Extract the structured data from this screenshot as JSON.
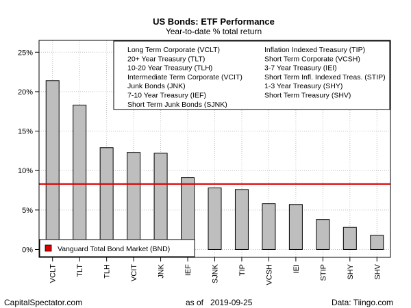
{
  "chart_data": {
    "type": "bar",
    "title": "US Bonds: ETF Performance",
    "subtitle": "Year-to-date % total return",
    "categories": [
      "VCLT",
      "TLT",
      "TLH",
      "VCIT",
      "JNK",
      "IEF",
      "SJNK",
      "TIP",
      "VCSH",
      "IEI",
      "STIP",
      "SHY",
      "SHV"
    ],
    "values": [
      21.4,
      18.3,
      12.9,
      12.3,
      12.2,
      9.1,
      7.8,
      7.6,
      5.8,
      5.7,
      3.8,
      2.8,
      1.8
    ],
    "ylim": [
      -1,
      26.5
    ],
    "yticks": [
      0,
      5,
      10,
      15,
      20,
      25
    ],
    "yticklabels": [
      "0%",
      "5%",
      "10%",
      "15%",
      "20%",
      "25%"
    ],
    "bar_color": "#bebebe",
    "grid": true,
    "reference_line": {
      "label": "Vanguard Total Bond Market (BND)",
      "value": 8.3,
      "color": "#dd0000"
    },
    "legend_entries": [
      "Long Term Corporate (VCLT)",
      "20+ Year Treasury (TLT)",
      "10-20 Year Treasury (TLH)",
      "Intermediate Term Corporate (VCIT)",
      "Junk Bonds (JNK)",
      "7-10 Year Treasury (IEF)",
      "Short Term Junk Bonds (SJNK)",
      "Inflation Indexed Treasury (TIP)",
      "Short Term Corporate (VCSH)",
      "3-7 Year Treasury (IEI)",
      "Short Term Infl. Indexed Treas. (STIP)",
      "1-3 Year Treasury (SHY)",
      "Short Term Treasury (SHV)"
    ],
    "legend_placement": "top-right"
  },
  "footer": {
    "left": "CapitalSpectator.com",
    "center": "as of   2019-09-25",
    "right": "Data: Tiingo.com"
  }
}
